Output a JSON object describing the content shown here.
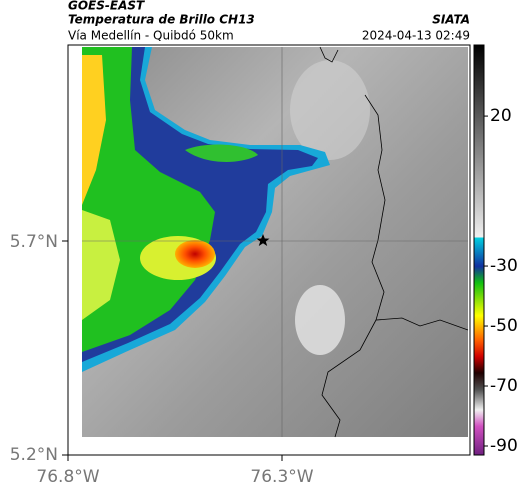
{
  "header": {
    "source": "GOES-EAST",
    "product": "Temperatura de Brillo CH13",
    "location": "Vía Medellín - Quibdó 50km",
    "agency": "SIATA",
    "timestamp": "2024-04-13 02:49"
  },
  "map": {
    "lat_labels": [
      "5.7°N",
      "5.2°N"
    ],
    "lon_labels": [
      "76.8°W",
      "76.3°W"
    ]
  },
  "colorbar": {
    "lim": [
      43.7,
      -93
    ],
    "ticks": [
      20,
      -30,
      -50,
      -70,
      -90
    ]
  }
}
